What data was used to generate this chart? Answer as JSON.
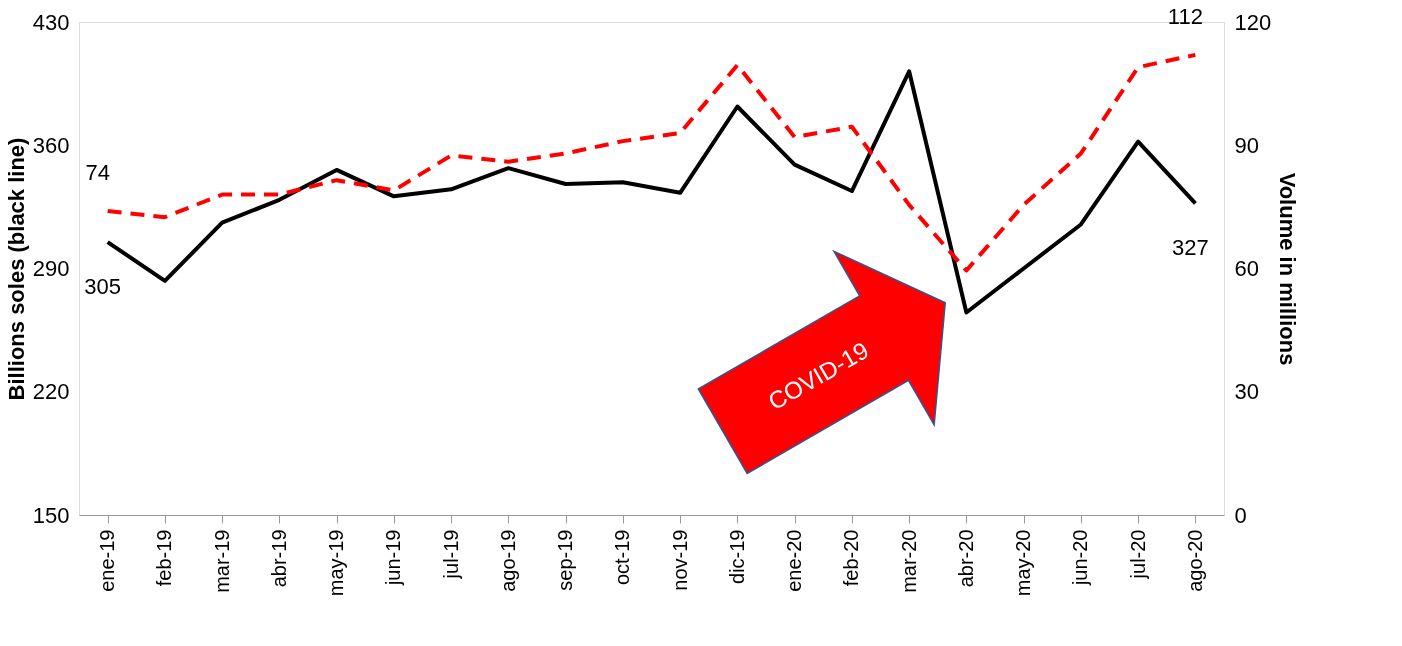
{
  "chart_data": {
    "type": "line",
    "categories": [
      "ene-19",
      "feb-19",
      "mar-19",
      "abr-19",
      "may-19",
      "jun-19",
      "jul-19",
      "ago-19",
      "sep-19",
      "oct-19",
      "nov-19",
      "dic-19",
      "ene-20",
      "feb-20",
      "mar-20",
      "abr-20",
      "may-20",
      "jun-20",
      "jul-20",
      "ago-20"
    ],
    "series": [
      {
        "color": "#000000",
        "line_style": "solid",
        "values": [
          305,
          283,
          316,
          329,
          346,
          331,
          335,
          347,
          338,
          339,
          333,
          382,
          349,
          334,
          402,
          265,
          290,
          315,
          362,
          327
        ],
        "value_labels": [
          "305",
          null,
          null,
          null,
          null,
          null,
          null,
          null,
          null,
          null,
          null,
          null,
          null,
          null,
          null,
          null,
          null,
          null,
          null,
          "327"
        ]
      },
      {
        "color": "#ff0000",
        "line_style": "dashed",
        "axis": "y2",
        "values": [
          74,
          72.5,
          78,
          78,
          81.5,
          79,
          87.5,
          86,
          88,
          91,
          93,
          109.5,
          92,
          94.5,
          75.5,
          59.5,
          75.5,
          88,
          109,
          112
        ],
        "value_labels": [
          "74",
          null,
          null,
          null,
          null,
          null,
          null,
          null,
          null,
          null,
          null,
          null,
          null,
          null,
          null,
          null,
          null,
          null,
          null,
          "112"
        ]
      }
    ],
    "ylabel": "Billions  soles (black line)",
    "y2label": "Volume in millions",
    "ylim": [
      150,
      430
    ],
    "yticks": [
      150,
      220,
      290,
      360,
      430
    ],
    "y2lim": [
      0,
      120
    ],
    "y2ticks": [
      0,
      30,
      60,
      90,
      120
    ],
    "annotations": [
      "COVID-19"
    ],
    "grid": false,
    "legend": false,
    "marker": "none"
  }
}
